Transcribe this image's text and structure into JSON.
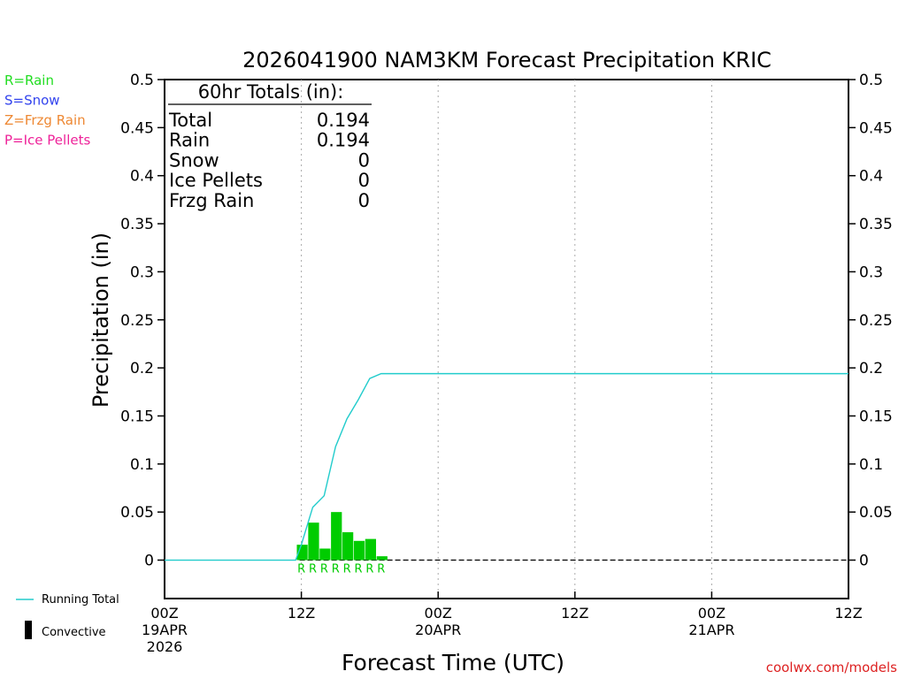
{
  "title": "2026041900 NAM3KM Forecast Precipitation KRIC",
  "legend_types": [
    {
      "label": "R=Rain",
      "color": "#22dd22"
    },
    {
      "label": "S=Snow",
      "color": "#3344ee"
    },
    {
      "label": "Z=Frzg Rain",
      "color": "#ee8833"
    },
    {
      "label": "P=Ice Pellets",
      "color": "#ee2299"
    }
  ],
  "totals_box": {
    "header": "60hr Totals (in):",
    "rows": [
      {
        "label": "Total",
        "value": "0.194"
      },
      {
        "label": "Rain",
        "value": "0.194"
      },
      {
        "label": "Snow",
        "value": "0"
      },
      {
        "label": "Ice Pellets",
        "value": "0"
      },
      {
        "label": "Frzg Rain",
        "value": "0"
      }
    ]
  },
  "bottom_legend": {
    "running_total": "Running Total",
    "convective": "Convective",
    "running_total_color": "#22cccc"
  },
  "credit": "coolwx.com/models",
  "credit_color": "#dd2222",
  "colors": {
    "rain_bar": "#00cc00",
    "running_total": "#22cccc"
  },
  "chart_data": {
    "type": "bar",
    "title": "2026041900 NAM3KM Forecast Precipitation KRIC",
    "xlabel": "Forecast Time (UTC)",
    "ylabel": "Precipitation (in)",
    "ylim": [
      -0.04,
      0.5
    ],
    "xlim_hours": [
      0,
      60
    ],
    "y_ticks": [
      0,
      0.05,
      0.1,
      0.15,
      0.2,
      0.25,
      0.3,
      0.35,
      0.4,
      0.45,
      0.5
    ],
    "y_tick_labels": [
      "0",
      "0.05",
      "0.1",
      "0.15",
      "0.2",
      "0.25",
      "0.3",
      "0.35",
      "0.4",
      "0.45",
      "0.5"
    ],
    "x_ticks": [
      {
        "hour": 0,
        "lines": [
          "00Z",
          "19APR",
          "2026"
        ]
      },
      {
        "hour": 12,
        "lines": [
          "12Z"
        ]
      },
      {
        "hour": 24,
        "lines": [
          "00Z",
          "20APR"
        ]
      },
      {
        "hour": 36,
        "lines": [
          "12Z"
        ]
      },
      {
        "hour": 48,
        "lines": [
          "00Z",
          "21APR"
        ]
      },
      {
        "hour": 60,
        "lines": [
          "12Z"
        ]
      }
    ],
    "grid_hours": [
      12,
      24,
      36,
      48
    ],
    "bars": {
      "name": "Hourly Precipitation",
      "type_code": "R",
      "hours": [
        12,
        13,
        14,
        15,
        16,
        17,
        18,
        19
      ],
      "values": [
        0.016,
        0.039,
        0.012,
        0.05,
        0.029,
        0.02,
        0.022,
        0.004
      ],
      "types": [
        "R",
        "R",
        "R",
        "R",
        "R",
        "R",
        "R",
        "R"
      ]
    },
    "running_total": {
      "name": "Running Total",
      "x": [
        0,
        11,
        11.5,
        12,
        13,
        14,
        15,
        16,
        17,
        18,
        19,
        60
      ],
      "y": [
        0,
        0,
        0,
        0.016,
        0.055,
        0.067,
        0.118,
        0.147,
        0.167,
        0.189,
        0.194,
        0.194
      ]
    }
  }
}
